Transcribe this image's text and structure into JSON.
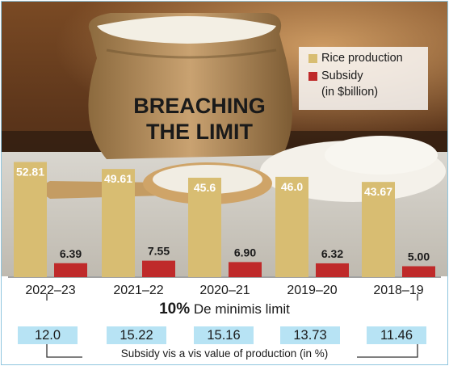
{
  "chart_data": {
    "type": "bar",
    "title": "BREACHING THE LIMIT",
    "categories": [
      "2022–23",
      "2021–22",
      "2020–21",
      "2019–20",
      "2018–19"
    ],
    "series": [
      {
        "name": "Rice production",
        "values": [
          52.81,
          49.61,
          45.6,
          46.0,
          43.67
        ],
        "labels": [
          "52.81",
          "49.61",
          "45.6",
          "46.0",
          "43.67"
        ],
        "color": "#d8bd72"
      },
      {
        "name": "Subsidy",
        "values": [
          6.39,
          7.55,
          6.9,
          6.32,
          5.0
        ],
        "labels": [
          "6.39",
          "7.55",
          "6.90",
          "6.32",
          "5.00"
        ],
        "color": "#bf2a2a"
      }
    ],
    "unit_note": "(in $billion)",
    "ylim": [
      0,
      53
    ],
    "de_minimis": {
      "value": "10%",
      "text": "De minimis limit"
    },
    "ratio": {
      "label": "Subsidy vis a vis value of production (in %)",
      "values": [
        "12.0",
        "15.22",
        "15.16",
        "13.73",
        "11.46"
      ]
    },
    "legend_position": "top-right"
  },
  "colors": {
    "production": "#d8bd72",
    "subsidy": "#bf2a2a",
    "box": "#b7e3f4"
  }
}
